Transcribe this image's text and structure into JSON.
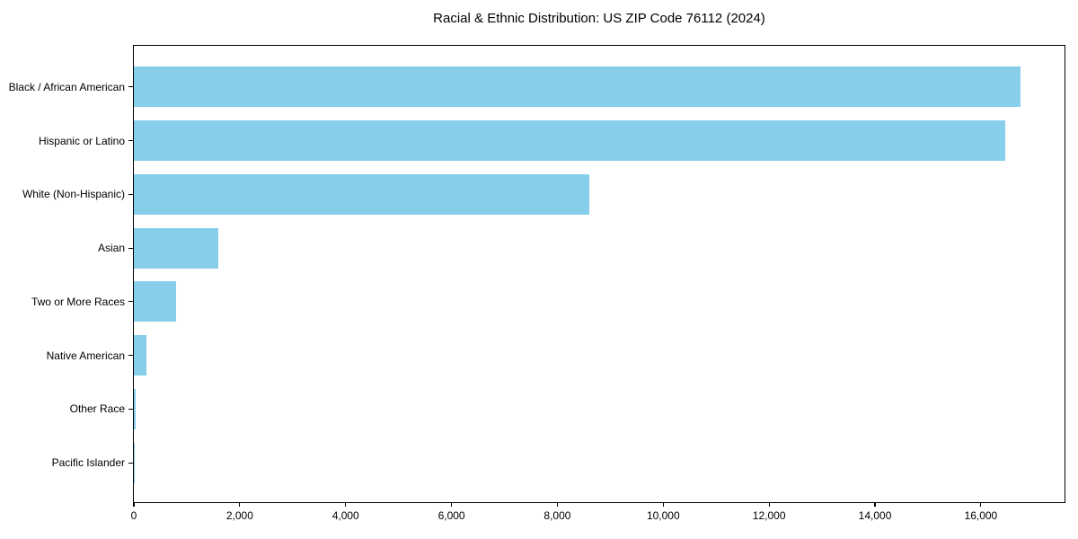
{
  "figure": {
    "background": "#ffffff",
    "frame_color": "#000000"
  },
  "chart_data": {
    "type": "bar",
    "orientation": "horizontal",
    "title": "Racial & Ethnic Distribution: US ZIP Code 76112 (2024)",
    "categories": [
      "Black / African American",
      "Hispanic or Latino",
      "White (Non-Hispanic)",
      "Asian",
      "Two or More Races",
      "Native American",
      "Other Race",
      "Pacific Islander"
    ],
    "values": [
      16750,
      16460,
      8600,
      1600,
      800,
      230,
      30,
      10
    ],
    "bar_color": "#87CEEB",
    "xlabel": "",
    "ylabel": "",
    "xlim": [
      0,
      17580
    ],
    "xticks": [
      0,
      2000,
      4000,
      6000,
      8000,
      10000,
      12000,
      14000,
      16000
    ],
    "xtick_labels": [
      "0",
      "2,000",
      "4,000",
      "6,000",
      "8,000",
      "10,000",
      "12,000",
      "14,000",
      "16,000"
    ],
    "grid": false,
    "legend": "none"
  }
}
